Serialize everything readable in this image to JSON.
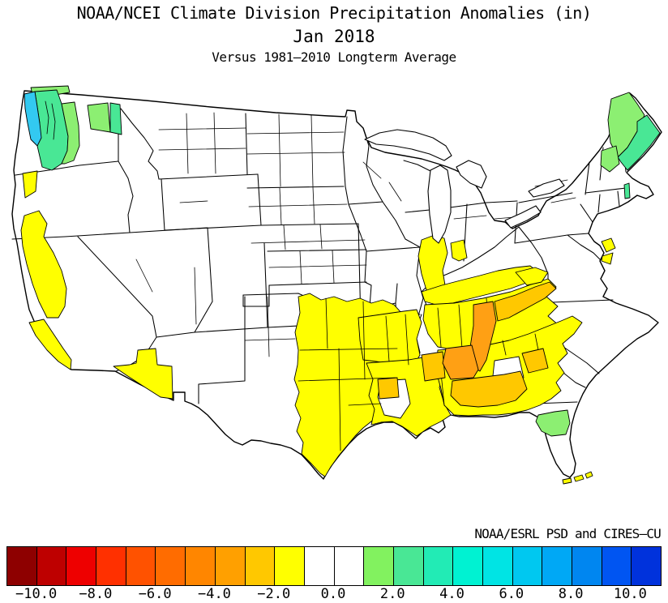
{
  "header": {
    "title": "NOAA/NCEI Climate Division Precipitation Anomalies (in)",
    "period": "Jan 2018",
    "baseline": "Versus 1981–2010 Longterm Average"
  },
  "credit": "NOAA/ESRL PSD and CIRES–CU",
  "chart_data": {
    "type": "choropleth_map",
    "title": "NOAA/NCEI Climate Division Precipitation Anomalies (in)",
    "period": "Jan 2018",
    "baseline": "Versus 1981–2010 Longterm Average",
    "area": "Contiguous United States, NOAA climate divisions",
    "units": "inches",
    "colorbar": {
      "position": "bottom",
      "range": [
        -11,
        11
      ],
      "segment_size": 1,
      "segments": [
        "#8E0000",
        "#BE0000",
        "#EE0000",
        "#FF3000",
        "#FF5200",
        "#FF6C00",
        "#FF8600",
        "#FFA000",
        "#FFC800",
        "#FFFF00",
        "#FFFFFF",
        "#FFFFFF",
        "#82F25F",
        "#49E795",
        "#22EBB5",
        "#00F2D2",
        "#00E4E4",
        "#00C8F0",
        "#00A8F5",
        "#0086F0",
        "#0055F2",
        "#0032DC"
      ],
      "ticks": [
        {
          "value": -10,
          "label": "−10.0"
        },
        {
          "value": -8,
          "label": "−8.0"
        },
        {
          "value": -6,
          "label": "−6.0"
        },
        {
          "value": -4,
          "label": "−4.0"
        },
        {
          "value": -2,
          "label": "−2.0"
        },
        {
          "value": 0,
          "label": "0.0"
        },
        {
          "value": 2,
          "label": "2.0"
        },
        {
          "value": 4,
          "label": "4.0"
        },
        {
          "value": 6,
          "label": "6.0"
        },
        {
          "value": 8,
          "label": "8.0"
        },
        {
          "value": 10,
          "label": "10.0"
        }
      ]
    },
    "palette": {
      "yellow": "#FFFF00",
      "amber": "#FFC800",
      "orange": "#FFA014",
      "light_green": "#8CEF72",
      "spring_green": "#49E795",
      "cyan": "#33C9F1",
      "white": "#FFFFFF"
    },
    "regions": [
      {
        "id": "wa-coastal-cyan",
        "name": "Western Washington coast / Puget Sound shore",
        "color": "cyan",
        "anomaly_in": "+6 to +8"
      },
      {
        "id": "puget-sound",
        "name": "Puget Sound lowlands",
        "color": "spring_green",
        "anomaly_in": "+2 to +4"
      },
      {
        "id": "wa-north-strip",
        "name": "Northern Washington strip",
        "color": "light_green",
        "anomaly_in": "+1 to +2"
      },
      {
        "id": "wa-cascades",
        "name": "Washington Cascades",
        "color": "light_green",
        "anomaly_in": "+1 to +2"
      },
      {
        "id": "ne-washington",
        "name": "Northeast Washington",
        "color": "light_green",
        "anomaly_in": "+1 to +2"
      },
      {
        "id": "idaho-panhandle",
        "name": "Idaho panhandle",
        "color": "spring_green",
        "anomaly_in": "+2 to +3"
      },
      {
        "id": "nw-california",
        "name": "Northwest California coast range",
        "color": "yellow",
        "anomaly_in": "-2 to -1"
      },
      {
        "id": "california-central",
        "name": "California Central Valley / Sierra foothills",
        "color": "yellow",
        "anomaly_in": "-2 to -1"
      },
      {
        "id": "california-south-coast",
        "name": "Central & South California coast",
        "color": "yellow",
        "anomaly_in": "-2 to -1"
      },
      {
        "id": "southern-arizona-new-mexico",
        "name": "Southern Arizona / southern New Mexico",
        "color": "yellow",
        "anomaly_in": "-2 to -1"
      },
      {
        "id": "texas-oklahoma",
        "name": "Central-east Texas and Oklahoma",
        "color": "yellow",
        "anomaly_in": "-2 to -1"
      },
      {
        "id": "texas-louisiana-border",
        "name": "Texas / Louisiana border",
        "color": "amber",
        "anomaly_in": "-3 to -2"
      },
      {
        "id": "arkansas-missouri",
        "name": "Arkansas / SE Missouri",
        "color": "yellow",
        "anomaly_in": "-2 to -1"
      },
      {
        "id": "louisiana-mississippi",
        "name": "Louisiana / Mississippi",
        "color": "yellow",
        "anomaly_in": "-2 to -1"
      },
      {
        "id": "central-louisiana-white",
        "name": "Central Louisiana (near normal)",
        "color": "white",
        "anomaly_in": "-1 to 0"
      },
      {
        "id": "southern-illinois-indiana",
        "name": "Southern Illinois / Indiana",
        "color": "yellow",
        "anomaly_in": "-2 to -1"
      },
      {
        "id": "central-indiana",
        "name": "Central Indiana",
        "color": "yellow",
        "anomaly_in": "-2 to -1"
      },
      {
        "id": "kentucky",
        "name": "Kentucky",
        "color": "yellow",
        "anomaly_in": "-2 to -1"
      },
      {
        "id": "tennessee-valley",
        "name": "Tennessee valley region",
        "color": "yellow",
        "anomaly_in": "-2 to -1"
      },
      {
        "id": "alabama-georgia-carolinas",
        "name": "Alabama / Georgia / western Carolinas",
        "color": "yellow",
        "anomaly_in": "-2 to -1"
      },
      {
        "id": "central-georgia-white",
        "name": "Central Georgia (near normal)",
        "color": "white",
        "anomaly_in": "-1 to 0"
      },
      {
        "id": "east-tennessee",
        "name": "East Tennessee / Cumberland",
        "color": "amber",
        "anomaly_in": "-3 to -2"
      },
      {
        "id": "middle-tennessee",
        "name": "Middle Tennessee",
        "color": "orange",
        "anomaly_in": "-4 to -3"
      },
      {
        "id": "northwest-alabama",
        "name": "Northwest Alabama",
        "color": "orange",
        "anomaly_in": "-4 to -3"
      },
      {
        "id": "central-mississippi",
        "name": "Central Mississippi",
        "color": "amber",
        "anomaly_in": "-3 to -2"
      },
      {
        "id": "south-alabama-georgia",
        "name": "South Alabama / SW Georgia",
        "color": "amber",
        "anomaly_in": "-3 to -2"
      },
      {
        "id": "east-georgia",
        "name": "East Georgia",
        "color": "amber",
        "anomaly_in": "-3 to -2"
      },
      {
        "id": "southwest-virginia",
        "name": "Southwest Virginia",
        "color": "yellow",
        "anomaly_in": "-2 to -1"
      },
      {
        "id": "chesapeake-maryland-1",
        "name": "Maryland / Chesapeake patch",
        "color": "yellow",
        "anomaly_in": "-2 to -1"
      },
      {
        "id": "chesapeake-maryland-2",
        "name": "Virginia tidewater patch",
        "color": "yellow",
        "anomaly_in": "-2 to -1"
      },
      {
        "id": "florida-keys",
        "name": "Florida Keys",
        "color": "yellow",
        "anomaly_in": "-2 to -1"
      },
      {
        "id": "north-florida",
        "name": "North-central Florida",
        "color": "light_green",
        "anomaly_in": "+1 to +2"
      },
      {
        "id": "interior-maine",
        "name": "Interior Maine",
        "color": "light_green",
        "anomaly_in": "+1 to +2"
      },
      {
        "id": "coastal-maine",
        "name": "Coastal Maine",
        "color": "spring_green",
        "anomaly_in": "+2 to +3"
      },
      {
        "id": "northern-vermont",
        "name": "Northern Vermont",
        "color": "light_green",
        "anomaly_in": "+1 to +2"
      },
      {
        "id": "western-connecticut",
        "name": "Western Connecticut sliver",
        "color": "spring_green",
        "anomaly_in": "+2 to +3"
      }
    ]
  }
}
